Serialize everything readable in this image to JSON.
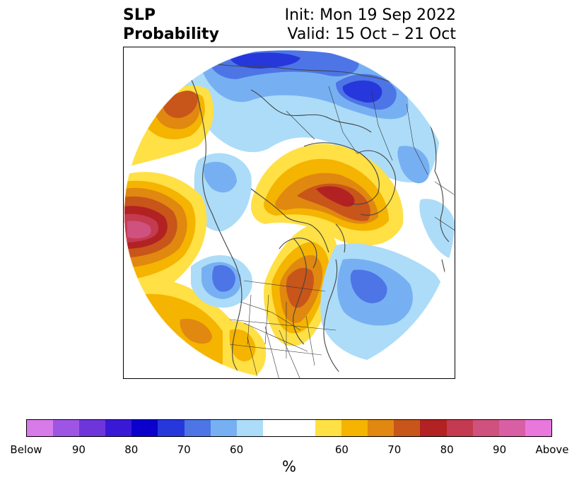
{
  "title": {
    "left_line1": "SLP",
    "left_line2": "Probability",
    "right_line1": "Init: Mon 19 Sep 2022",
    "right_line2": "Valid: 15 Oct – 21 Oct"
  },
  "colorbar": {
    "colors": [
      "#d77be8",
      "#9f55e3",
      "#6d35da",
      "#3a19d6",
      "#0b00cc",
      "#2638dc",
      "#4d75e6",
      "#77b0f2",
      "#acdcf8",
      "#ffffff",
      "#ffffff",
      "#ffe045",
      "#f4b400",
      "#e0880f",
      "#c8551a",
      "#b22222",
      "#c43a50",
      "#ce527d",
      "#d95fa5",
      "#e878dc"
    ],
    "labels": [
      "Below",
      "90",
      "80",
      "70",
      "60",
      "60",
      "70",
      "80",
      "90",
      "Above"
    ],
    "unit": "%"
  },
  "map": {
    "below_colors": [
      "#acdcf8",
      "#77b0f2",
      "#4d75e6",
      "#2638dc"
    ],
    "above_colors": [
      "#ffe045",
      "#f4b400",
      "#e0880f",
      "#c8551a",
      "#b22222",
      "#c43a50",
      "#ce527d"
    ],
    "coastline_color": "#444444"
  }
}
